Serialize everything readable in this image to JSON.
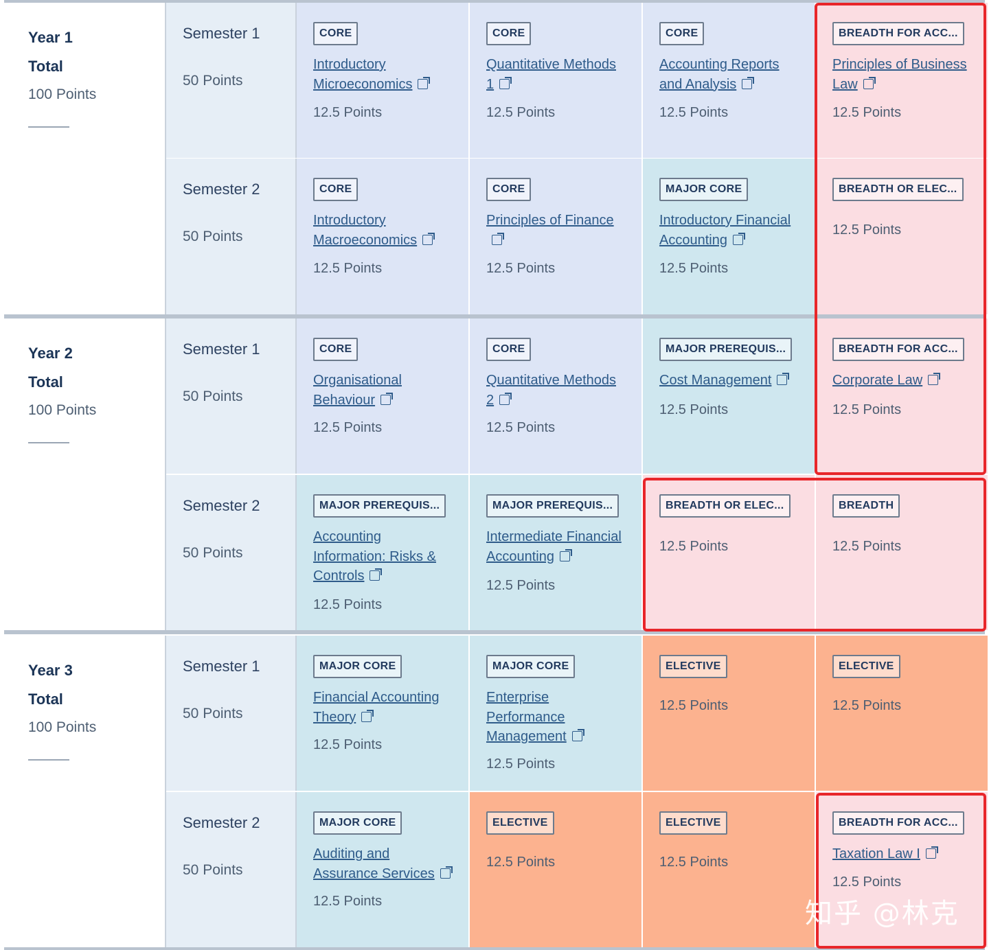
{
  "years": [
    {
      "label": "Year 1",
      "total_label": "Total",
      "total_points": "100 Points",
      "semesters": [
        {
          "label": "Semester 1",
          "points": "50 Points",
          "cells": [
            {
              "type": "core",
              "badge": "CORE",
              "course": "Introductory Microeconomics",
              "points": "12.5 Points"
            },
            {
              "type": "core",
              "badge": "CORE",
              "course": "Quantitative Methods 1",
              "points": "12.5 Points"
            },
            {
              "type": "core",
              "badge": "CORE",
              "course": "Accounting Reports and Analysis",
              "points": "12.5 Points"
            },
            {
              "type": "breadth",
              "badge": "BREADTH FOR ACC...",
              "course": "Principles of Business Law",
              "points": "12.5 Points"
            }
          ]
        },
        {
          "label": "Semester 2",
          "points": "50 Points",
          "cells": [
            {
              "type": "core",
              "badge": "CORE",
              "course": "Introductory Macroeconomics",
              "points": "12.5 Points"
            },
            {
              "type": "core",
              "badge": "CORE",
              "course": "Principles of Finance",
              "points": "12.5 Points"
            },
            {
              "type": "major",
              "badge": "MAJOR CORE",
              "course": "Introductory Financial Accounting",
              "points": "12.5 Points"
            },
            {
              "type": "breadth",
              "badge": "BREADTH OR ELEC...",
              "course": "",
              "points": "12.5 Points"
            }
          ]
        }
      ]
    },
    {
      "label": "Year 2",
      "total_label": "Total",
      "total_points": "100 Points",
      "semesters": [
        {
          "label": "Semester 1",
          "points": "50 Points",
          "cells": [
            {
              "type": "core",
              "badge": "CORE",
              "course": "Organisational Behaviour",
              "points": "12.5 Points"
            },
            {
              "type": "core",
              "badge": "CORE",
              "course": "Quantitative Methods 2",
              "points": "12.5 Points"
            },
            {
              "type": "major",
              "badge": "MAJOR PREREQUIS...",
              "course": "Cost Management",
              "points": "12.5 Points"
            },
            {
              "type": "breadth",
              "badge": "BREADTH FOR ACC...",
              "course": "Corporate Law",
              "points": "12.5 Points"
            }
          ]
        },
        {
          "label": "Semester 2",
          "points": "50 Points",
          "cells": [
            {
              "type": "major",
              "badge": "MAJOR PREREQUIS...",
              "course": "Accounting Information: Risks & Controls",
              "points": "12.5 Points"
            },
            {
              "type": "major",
              "badge": "MAJOR PREREQUIS...",
              "course": "Intermediate Financial Accounting",
              "points": "12.5 Points"
            },
            {
              "type": "breadth",
              "badge": "BREADTH OR ELEC...",
              "course": "",
              "points": "12.5 Points"
            },
            {
              "type": "breadth",
              "badge": "BREADTH",
              "course": "",
              "points": "12.5 Points"
            }
          ]
        }
      ]
    },
    {
      "label": "Year 3",
      "total_label": "Total",
      "total_points": "100 Points",
      "semesters": [
        {
          "label": "Semester 1",
          "points": "50 Points",
          "cells": [
            {
              "type": "major",
              "badge": "MAJOR CORE",
              "course": "Financial Accounting Theory",
              "points": "12.5 Points"
            },
            {
              "type": "major",
              "badge": "MAJOR CORE",
              "course": "Enterprise Performance Management",
              "points": "12.5 Points"
            },
            {
              "type": "elective",
              "badge": "ELECTIVE",
              "course": "",
              "points": "12.5 Points"
            },
            {
              "type": "elective",
              "badge": "ELECTIVE",
              "course": "",
              "points": "12.5 Points"
            }
          ]
        },
        {
          "label": "Semester 2",
          "points": "50 Points",
          "cells": [
            {
              "type": "major",
              "badge": "MAJOR CORE",
              "course": "Auditing and Assurance Services",
              "points": "12.5 Points"
            },
            {
              "type": "elective",
              "badge": "ELECTIVE",
              "course": "",
              "points": "12.5 Points"
            },
            {
              "type": "elective",
              "badge": "ELECTIVE",
              "course": "",
              "points": "12.5 Points"
            },
            {
              "type": "breadth",
              "badge": "BREADTH FOR ACC...",
              "course": "Taxation Law I",
              "points": "12.5 Points"
            }
          ]
        }
      ]
    }
  ],
  "watermark": "知乎 @林克",
  "colors": {
    "core": "#dde5f6",
    "major": "#cfe7ef",
    "breadth": "#fbdde2",
    "elective": "#fcb28f",
    "highlight": "#e8262a"
  }
}
